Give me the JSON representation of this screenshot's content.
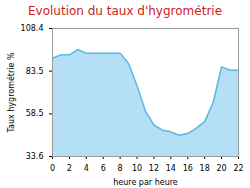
{
  "chart_data": {
    "type": "area",
    "title": "Evolution du taux d'hygrométrie",
    "x_label": "heure par heure",
    "y_label": "Taux hygrométrie %",
    "x": [
      0,
      1,
      2,
      3,
      4,
      5,
      6,
      7,
      8,
      9,
      10,
      11,
      12,
      13,
      14,
      15,
      16,
      17,
      18,
      19,
      20,
      21,
      22
    ],
    "values": [
      91,
      93,
      93,
      96,
      94,
      94,
      94,
      94,
      94,
      88,
      75,
      60,
      52,
      49,
      48,
      46,
      47,
      50,
      54,
      65,
      86,
      84,
      84
    ],
    "color": "#5bb8e6",
    "xlim": [
      0,
      22
    ],
    "xticks": [
      0,
      2,
      4,
      6,
      8,
      10,
      12,
      14,
      16,
      18,
      20,
      22
    ],
    "ylim": [
      33.6,
      108.4
    ],
    "yticks": [
      33.6,
      58.5,
      83.5,
      108.4
    ],
    "grid": false
  }
}
